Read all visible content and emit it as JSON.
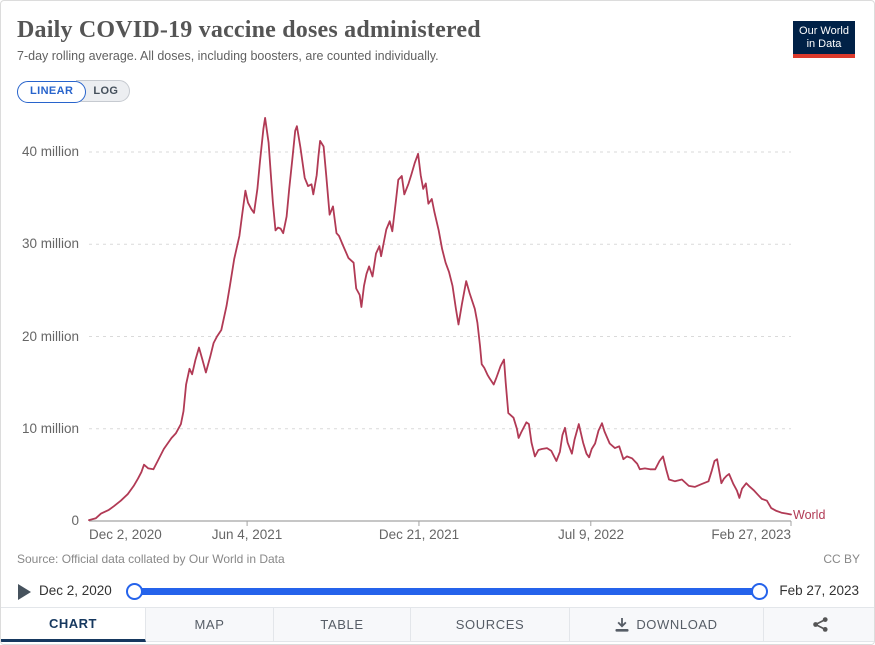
{
  "header": {
    "title": "Daily COVID-19 vaccine doses administered",
    "subtitle": "7-day rolling average. All doses, including boosters, are counted individually."
  },
  "logo": {
    "line1": "Our World",
    "line2": "in Data",
    "bg": "#002147",
    "accent": "#dc3a2c"
  },
  "scale_toggle": {
    "linear_label": "LINEAR",
    "log_label": "LOG",
    "selected": "LINEAR",
    "accent": "#2864cc"
  },
  "chart_data": {
    "type": "line",
    "title": "Daily COVID-19 vaccine doses administered",
    "xlabel": "",
    "ylabel": "",
    "grid": true,
    "legend_position": "end-of-line",
    "x_axis": {
      "start_label": "Dec 2, 2020",
      "end_label": "Feb 27, 2023",
      "tick_labels": [
        "Dec 2, 2020",
        "Jun 4, 2021",
        "Dec 21, 2021",
        "Jul 9, 2022",
        "Feb 27, 2023"
      ],
      "tick_days_from_start": [
        0,
        184,
        384,
        584,
        817
      ],
      "span_days": 817
    },
    "y_axis": {
      "tick_labels": [
        "0",
        "10 million",
        "20 million",
        "30 million",
        "40 million"
      ],
      "tick_values_millions": [
        0,
        10,
        20,
        30,
        40
      ],
      "ylim_millions": [
        0,
        44
      ]
    },
    "series": [
      {
        "name": "World",
        "color": "#b13a55",
        "unit": "doses per day (millions)",
        "points_day_value_millions": [
          [
            0,
            0.1
          ],
          [
            8,
            0.3
          ],
          [
            14,
            0.8
          ],
          [
            23,
            1.2
          ],
          [
            29,
            1.6
          ],
          [
            37,
            2.2
          ],
          [
            45,
            2.9
          ],
          [
            52,
            3.8
          ],
          [
            57,
            4.6
          ],
          [
            61,
            5.3
          ],
          [
            64,
            6.1
          ],
          [
            69,
            5.7
          ],
          [
            75,
            5.6
          ],
          [
            80,
            6.5
          ],
          [
            87,
            7.8
          ],
          [
            96,
            9.0
          ],
          [
            101,
            9.5
          ],
          [
            107,
            10.5
          ],
          [
            110,
            11.9
          ],
          [
            113,
            14.8
          ],
          [
            117,
            16.5
          ],
          [
            120,
            15.9
          ],
          [
            124,
            17.5
          ],
          [
            128,
            18.8
          ],
          [
            132,
            17.5
          ],
          [
            136,
            16.1
          ],
          [
            141,
            17.8
          ],
          [
            145,
            19.3
          ],
          [
            149,
            20.0
          ],
          [
            154,
            20.7
          ],
          [
            160,
            23.3
          ],
          [
            164,
            25.5
          ],
          [
            169,
            28.4
          ],
          [
            175,
            30.9
          ],
          [
            178,
            33.0
          ],
          [
            182,
            35.8
          ],
          [
            185,
            34.5
          ],
          [
            189,
            33.8
          ],
          [
            192,
            33.4
          ],
          [
            196,
            36.0
          ],
          [
            199,
            39.0
          ],
          [
            203,
            42.5
          ],
          [
            205,
            43.7
          ],
          [
            209,
            41.0
          ],
          [
            212,
            37.0
          ],
          [
            214,
            34.5
          ],
          [
            217,
            31.5
          ],
          [
            220,
            31.8
          ],
          [
            223,
            31.7
          ],
          [
            226,
            31.2
          ],
          [
            230,
            33.0
          ],
          [
            233,
            36.0
          ],
          [
            237,
            39.5
          ],
          [
            240,
            42.3
          ],
          [
            242,
            42.8
          ],
          [
            246,
            40.5
          ],
          [
            251,
            37.2
          ],
          [
            255,
            36.3
          ],
          [
            259,
            36.5
          ],
          [
            261,
            35.4
          ],
          [
            265,
            37.5
          ],
          [
            267,
            39.5
          ],
          [
            269,
            41.2
          ],
          [
            273,
            40.6
          ],
          [
            276,
            37.5
          ],
          [
            280,
            33.2
          ],
          [
            284,
            34.1
          ],
          [
            288,
            31.2
          ],
          [
            291,
            30.9
          ],
          [
            296,
            29.8
          ],
          [
            302,
            28.5
          ],
          [
            308,
            28.0
          ],
          [
            311,
            25.2
          ],
          [
            315,
            24.5
          ],
          [
            317,
            23.2
          ],
          [
            320,
            25.5
          ],
          [
            323,
            26.8
          ],
          [
            326,
            27.6
          ],
          [
            330,
            26.5
          ],
          [
            334,
            29.0
          ],
          [
            338,
            29.8
          ],
          [
            340,
            28.7
          ],
          [
            346,
            31.6
          ],
          [
            350,
            32.5
          ],
          [
            353,
            31.4
          ],
          [
            357,
            34.5
          ],
          [
            360,
            37.0
          ],
          [
            364,
            37.4
          ],
          [
            367,
            35.4
          ],
          [
            372,
            36.6
          ],
          [
            375,
            37.5
          ],
          [
            379,
            38.8
          ],
          [
            383,
            39.8
          ],
          [
            386,
            37.5
          ],
          [
            389,
            36.0
          ],
          [
            392,
            36.6
          ],
          [
            395,
            34.4
          ],
          [
            399,
            34.9
          ],
          [
            402,
            33.5
          ],
          [
            407,
            31.5
          ],
          [
            411,
            29.5
          ],
          [
            415,
            28.0
          ],
          [
            419,
            27.0
          ],
          [
            423,
            25.5
          ],
          [
            427,
            23.0
          ],
          [
            430,
            21.3
          ],
          [
            434,
            23.5
          ],
          [
            439,
            26.0
          ],
          [
            443,
            24.7
          ],
          [
            449,
            23.0
          ],
          [
            452,
            21.5
          ],
          [
            455,
            19.0
          ],
          [
            457,
            17.0
          ],
          [
            460,
            16.6
          ],
          [
            464,
            15.8
          ],
          [
            466,
            15.5
          ],
          [
            471,
            14.8
          ],
          [
            474,
            15.5
          ],
          [
            479,
            16.8
          ],
          [
            483,
            17.5
          ],
          [
            485,
            15.0
          ],
          [
            488,
            11.7
          ],
          [
            494,
            11.2
          ],
          [
            498,
            10.0
          ],
          [
            500,
            9.0
          ],
          [
            503,
            9.6
          ],
          [
            509,
            10.7
          ],
          [
            512,
            10.5
          ],
          [
            515,
            8.5
          ],
          [
            519,
            7.0
          ],
          [
            523,
            7.7
          ],
          [
            527,
            7.8
          ],
          [
            533,
            7.9
          ],
          [
            538,
            7.6
          ],
          [
            544,
            6.5
          ],
          [
            548,
            7.5
          ],
          [
            551,
            9.3
          ],
          [
            554,
            10.1
          ],
          [
            557,
            8.5
          ],
          [
            562,
            7.3
          ],
          [
            565,
            8.8
          ],
          [
            570,
            10.5
          ],
          [
            575,
            8.5
          ],
          [
            579,
            7.3
          ],
          [
            582,
            6.9
          ],
          [
            585,
            7.8
          ],
          [
            589,
            8.4
          ],
          [
            593,
            9.8
          ],
          [
            597,
            10.6
          ],
          [
            600,
            9.7
          ],
          [
            606,
            8.4
          ],
          [
            612,
            7.9
          ],
          [
            617,
            8.1
          ],
          [
            622,
            6.7
          ],
          [
            626,
            7.0
          ],
          [
            632,
            6.8
          ],
          [
            638,
            6.2
          ],
          [
            641,
            5.6
          ],
          [
            647,
            5.7
          ],
          [
            653,
            5.6
          ],
          [
            659,
            5.6
          ],
          [
            664,
            6.5
          ],
          [
            668,
            7.0
          ],
          [
            672,
            5.5
          ],
          [
            675,
            4.5
          ],
          [
            682,
            4.3
          ],
          [
            690,
            4.5
          ],
          [
            698,
            3.8
          ],
          [
            705,
            3.7
          ],
          [
            713,
            4.0
          ],
          [
            721,
            4.3
          ],
          [
            725,
            5.5
          ],
          [
            728,
            6.5
          ],
          [
            731,
            6.7
          ],
          [
            736,
            4.1
          ],
          [
            739,
            4.6
          ],
          [
            742,
            4.9
          ],
          [
            745,
            5.1
          ],
          [
            750,
            4.0
          ],
          [
            754,
            3.3
          ],
          [
            757,
            2.5
          ],
          [
            760,
            3.5
          ],
          [
            765,
            4.1
          ],
          [
            768,
            3.8
          ],
          [
            774,
            3.3
          ],
          [
            779,
            2.8
          ],
          [
            783,
            2.4
          ],
          [
            789,
            2.2
          ],
          [
            794,
            1.4
          ],
          [
            800,
            1.1
          ],
          [
            806,
            0.9
          ],
          [
            812,
            0.8
          ],
          [
            817,
            0.7
          ]
        ]
      }
    ]
  },
  "footer": {
    "source": "Source: Official data collated by Our World in Data",
    "license": "CC BY"
  },
  "timeline": {
    "start_label": "Dec 2, 2020",
    "end_label": "Feb 27, 2023"
  },
  "tabs": {
    "chart": "CHART",
    "map": "MAP",
    "table": "TABLE",
    "sources": "SOURCES",
    "download": "DOWNLOAD"
  },
  "colors": {
    "line": "#b13a55",
    "grid": "#dadada",
    "axis": "#a3a3a3",
    "slider": "#2563eb",
    "active_tab": "#16385f"
  }
}
